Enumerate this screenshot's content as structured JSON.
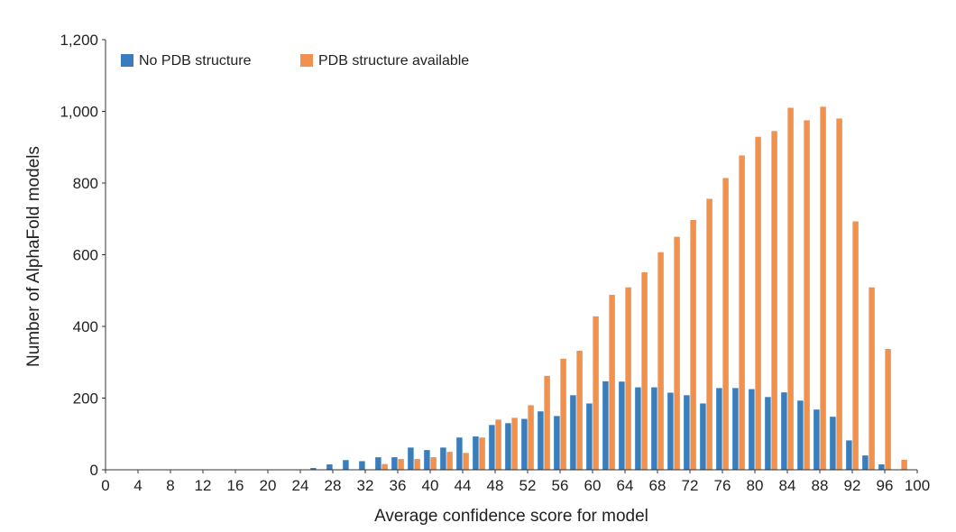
{
  "chart_data": {
    "type": "bar",
    "xlabel": "Average confidence score for model",
    "ylabel": "Number of AlphaFold models",
    "ylim": [
      0,
      1200
    ],
    "xlim": [
      0,
      100
    ],
    "x_ticks": [
      "0",
      "4",
      "8",
      "12",
      "16",
      "20",
      "24",
      "28",
      "32",
      "36",
      "40",
      "44",
      "48",
      "52",
      "56",
      "60",
      "64",
      "68",
      "72",
      "76",
      "80",
      "84",
      "88",
      "92",
      "96",
      "100"
    ],
    "y_ticks": [
      "0",
      "200",
      "400",
      "600",
      "800",
      "1,000",
      "1,200"
    ],
    "grid": false,
    "legend_position": "top-left",
    "bin_width": 2,
    "x": [
      26,
      28,
      30,
      32,
      34,
      36,
      38,
      40,
      42,
      44,
      46,
      48,
      50,
      52,
      54,
      56,
      58,
      60,
      62,
      64,
      66,
      68,
      70,
      72,
      74,
      76,
      78,
      80,
      82,
      84,
      86,
      88,
      90,
      92,
      94,
      96,
      98
    ],
    "series": [
      {
        "name": "No PDB structure",
        "color": "#3a7dbd",
        "values": [
          5,
          15,
          27,
          24,
          35,
          35,
          62,
          55,
          62,
          90,
          93,
          125,
          130,
          142,
          163,
          150,
          208,
          185,
          247,
          246,
          230,
          230,
          215,
          208,
          185,
          228,
          228,
          225,
          203,
          216,
          193,
          168,
          148,
          82,
          40,
          15,
          0
        ]
      },
      {
        "name": "PDB structure available",
        "color": "#f0914e",
        "values": [
          0,
          0,
          0,
          0,
          16,
          30,
          30,
          35,
          50,
          47,
          90,
          140,
          145,
          180,
          262,
          310,
          332,
          428,
          488,
          509,
          551,
          607,
          650,
          697,
          756,
          814,
          877,
          929,
          945,
          1010,
          975,
          1013,
          980,
          693,
          509,
          337,
          28
        ]
      }
    ]
  }
}
